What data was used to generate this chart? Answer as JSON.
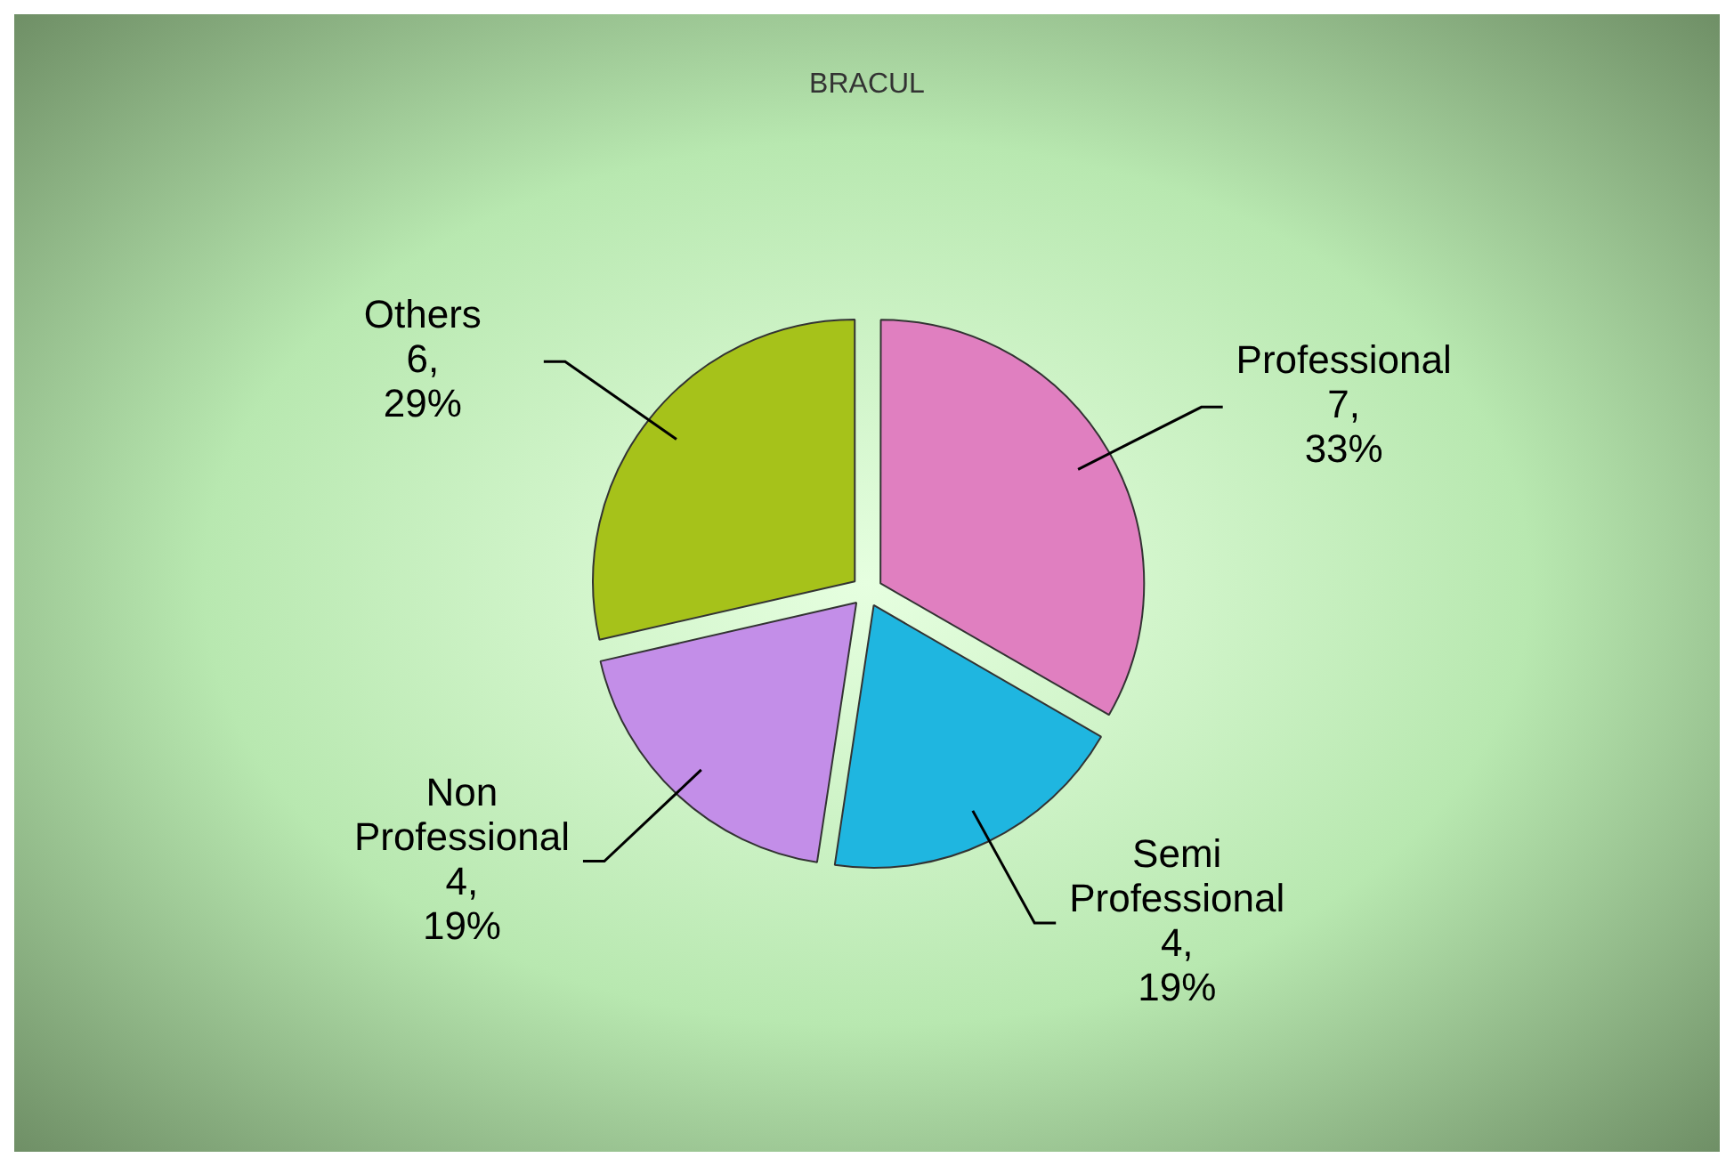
{
  "chart_data": {
    "type": "pie",
    "title": "BRACUL",
    "categories": [
      "Professional",
      "Semi Professional",
      "Non Professional",
      "Others"
    ],
    "values": [
      7,
      4,
      4,
      6
    ],
    "value_labels": [
      "7,\n33%",
      "4,\n19%",
      "4,\n19%",
      "6,\n29%"
    ],
    "colors": [
      "#e07fc0",
      "#1fb6e0",
      "#c38ee8",
      "#a6c21a"
    ],
    "legend": false
  }
}
